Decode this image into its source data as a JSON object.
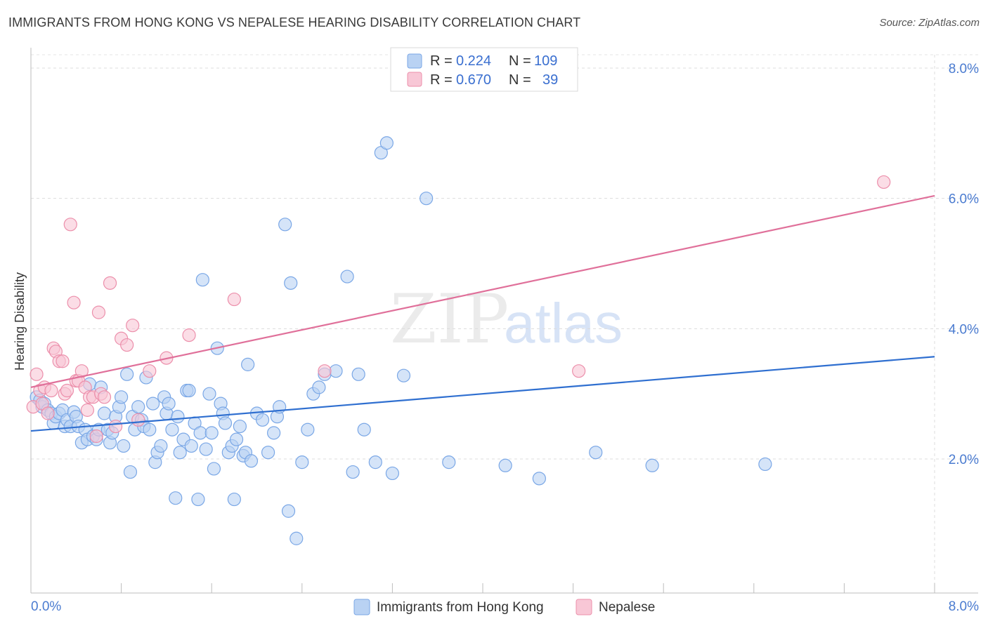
{
  "header": {
    "title": "IMMIGRANTS FROM HONG KONG VS NEPALESE HEARING DISABILITY CORRELATION CHART",
    "source": "Source: ZipAtlas.com"
  },
  "watermark": {
    "zip": "ZIP",
    "atlas": "atlas"
  },
  "legend": {
    "rows": [
      {
        "r_label": "R = ",
        "r_value": "0.224",
        "n_label": "N = ",
        "n_value": "109"
      },
      {
        "r_label": "R = ",
        "r_value": "0.670",
        "n_label": "N = ",
        "n_value": "39"
      }
    ]
  },
  "chart_data": {
    "type": "scatter",
    "ylabel": "Hearing Disability",
    "xlabel": "",
    "xlim": [
      0,
      8
    ],
    "ylim": [
      0,
      8
    ],
    "x_tick_labels": {
      "min": "0.0%",
      "max": "8.0%"
    },
    "y_tick_labels": [
      {
        "value": 2,
        "label": "2.0%"
      },
      {
        "value": 4,
        "label": "4.0%"
      },
      {
        "value": 6,
        "label": "6.0%"
      },
      {
        "value": 8,
        "label": "8.0%"
      }
    ],
    "grid": true,
    "legend_position": "top-center",
    "series": [
      {
        "name": "Immigrants from Hong Kong",
        "color": "#7aa7e6",
        "fill": "#b9d2f3",
        "trend": {
          "x": [
            0,
            8
          ],
          "y": [
            2.43,
            3.57
          ],
          "color": "#2f6fd0"
        },
        "points": [
          [
            0.05,
            2.95
          ],
          [
            0.08,
            2.9
          ],
          [
            0.1,
            2.8
          ],
          [
            0.12,
            2.85
          ],
          [
            0.15,
            2.75
          ],
          [
            0.18,
            2.7
          ],
          [
            0.2,
            2.55
          ],
          [
            0.22,
            2.65
          ],
          [
            0.25,
            2.7
          ],
          [
            0.28,
            2.75
          ],
          [
            0.3,
            2.5
          ],
          [
            0.32,
            2.6
          ],
          [
            0.35,
            2.5
          ],
          [
            0.38,
            2.72
          ],
          [
            0.4,
            2.65
          ],
          [
            0.42,
            2.5
          ],
          [
            0.45,
            2.25
          ],
          [
            0.48,
            2.45
          ],
          [
            0.5,
            2.3
          ],
          [
            0.52,
            3.15
          ],
          [
            0.55,
            2.35
          ],
          [
            0.58,
            2.3
          ],
          [
            0.6,
            2.45
          ],
          [
            0.62,
            3.1
          ],
          [
            0.65,
            2.7
          ],
          [
            0.68,
            2.45
          ],
          [
            0.7,
            2.25
          ],
          [
            0.72,
            2.4
          ],
          [
            0.75,
            2.65
          ],
          [
            0.78,
            2.8
          ],
          [
            0.8,
            2.95
          ],
          [
            0.82,
            2.2
          ],
          [
            0.85,
            3.3
          ],
          [
            0.88,
            1.8
          ],
          [
            0.9,
            2.65
          ],
          [
            0.92,
            2.45
          ],
          [
            0.95,
            2.8
          ],
          [
            0.98,
            2.6
          ],
          [
            1.0,
            2.5
          ],
          [
            1.02,
            3.25
          ],
          [
            1.05,
            2.45
          ],
          [
            1.08,
            2.85
          ],
          [
            1.1,
            1.95
          ],
          [
            1.12,
            2.1
          ],
          [
            1.15,
            2.2
          ],
          [
            1.18,
            2.95
          ],
          [
            1.2,
            2.7
          ],
          [
            1.22,
            2.85
          ],
          [
            1.25,
            2.45
          ],
          [
            1.28,
            1.4
          ],
          [
            1.3,
            2.65
          ],
          [
            1.32,
            2.1
          ],
          [
            1.35,
            2.3
          ],
          [
            1.38,
            3.05
          ],
          [
            1.4,
            3.05
          ],
          [
            1.42,
            2.2
          ],
          [
            1.45,
            2.55
          ],
          [
            1.48,
            1.38
          ],
          [
            1.5,
            2.4
          ],
          [
            1.52,
            4.75
          ],
          [
            1.55,
            2.15
          ],
          [
            1.58,
            3.0
          ],
          [
            1.6,
            2.4
          ],
          [
            1.62,
            1.85
          ],
          [
            1.65,
            3.7
          ],
          [
            1.68,
            2.85
          ],
          [
            1.7,
            2.7
          ],
          [
            1.72,
            2.55
          ],
          [
            1.75,
            2.1
          ],
          [
            1.78,
            2.2
          ],
          [
            1.8,
            1.38
          ],
          [
            1.82,
            2.3
          ],
          [
            1.85,
            2.5
          ],
          [
            1.88,
            2.05
          ],
          [
            1.9,
            2.1
          ],
          [
            1.92,
            3.45
          ],
          [
            1.95,
            1.97
          ],
          [
            2.0,
            2.7
          ],
          [
            2.05,
            2.6
          ],
          [
            2.1,
            2.1
          ],
          [
            2.15,
            2.4
          ],
          [
            2.18,
            2.65
          ],
          [
            2.2,
            2.8
          ],
          [
            2.25,
            5.6
          ],
          [
            2.28,
            1.2
          ],
          [
            2.3,
            4.7
          ],
          [
            2.35,
            0.78
          ],
          [
            2.4,
            1.95
          ],
          [
            2.45,
            2.45
          ],
          [
            2.5,
            3.0
          ],
          [
            2.55,
            3.1
          ],
          [
            2.6,
            3.3
          ],
          [
            2.7,
            3.35
          ],
          [
            2.8,
            4.8
          ],
          [
            2.85,
            1.8
          ],
          [
            2.9,
            3.3
          ],
          [
            2.95,
            2.45
          ],
          [
            3.05,
            1.95
          ],
          [
            3.1,
            6.7
          ],
          [
            3.15,
            6.85
          ],
          [
            3.2,
            1.78
          ],
          [
            3.3,
            3.28
          ],
          [
            3.5,
            6.0
          ],
          [
            3.7,
            1.95
          ],
          [
            4.2,
            1.9
          ],
          [
            4.5,
            1.7
          ],
          [
            5.0,
            2.1
          ],
          [
            5.5,
            1.9
          ],
          [
            6.5,
            1.92
          ]
        ]
      },
      {
        "name": "Nepalese",
        "color": "#ec8fab",
        "fill": "#f8c7d6",
        "trend": {
          "x": [
            0,
            8
          ],
          "y": [
            3.1,
            6.04
          ],
          "color": "#e0709a"
        },
        "points": [
          [
            0.02,
            2.8
          ],
          [
            0.05,
            3.3
          ],
          [
            0.08,
            3.05
          ],
          [
            0.1,
            2.85
          ],
          [
            0.12,
            3.1
          ],
          [
            0.15,
            2.7
          ],
          [
            0.18,
            3.05
          ],
          [
            0.2,
            3.7
          ],
          [
            0.22,
            3.65
          ],
          [
            0.25,
            3.5
          ],
          [
            0.28,
            3.5
          ],
          [
            0.3,
            3.0
          ],
          [
            0.32,
            3.05
          ],
          [
            0.35,
            5.6
          ],
          [
            0.38,
            4.4
          ],
          [
            0.4,
            3.2
          ],
          [
            0.42,
            3.2
          ],
          [
            0.45,
            3.35
          ],
          [
            0.48,
            3.1
          ],
          [
            0.5,
            2.75
          ],
          [
            0.52,
            2.95
          ],
          [
            0.55,
            2.95
          ],
          [
            0.58,
            2.35
          ],
          [
            0.6,
            4.25
          ],
          [
            0.62,
            3.0
          ],
          [
            0.65,
            2.95
          ],
          [
            0.7,
            4.7
          ],
          [
            0.75,
            2.5
          ],
          [
            0.8,
            3.85
          ],
          [
            0.85,
            3.75
          ],
          [
            0.9,
            4.05
          ],
          [
            0.95,
            2.6
          ],
          [
            1.05,
            3.35
          ],
          [
            1.2,
            3.55
          ],
          [
            1.4,
            3.9
          ],
          [
            1.8,
            4.45
          ],
          [
            2.6,
            3.35
          ],
          [
            4.85,
            3.35
          ],
          [
            7.55,
            6.25
          ]
        ]
      }
    ]
  }
}
